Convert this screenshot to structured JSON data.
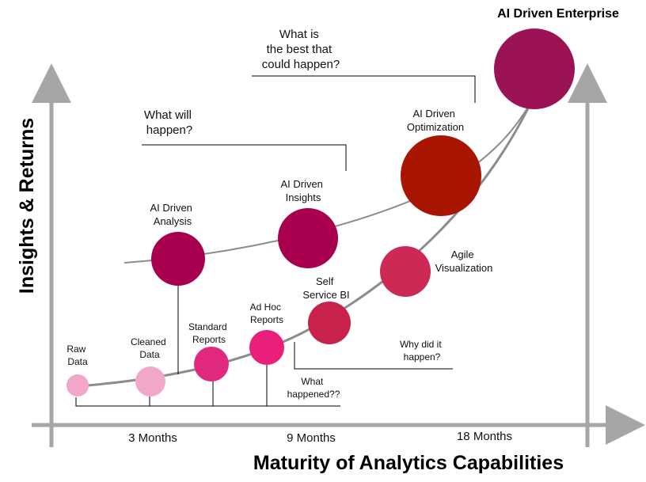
{
  "title": "AI Driven Enterprise",
  "axes": {
    "x_title": "Maturity of Analytics Capabilities",
    "y_title": "Insights & Returns",
    "x_ticks": [
      "3 Months",
      "9 Months",
      "18 Months"
    ]
  },
  "stages": [
    {
      "id": "raw-data",
      "lines": [
        "Raw",
        "Data"
      ],
      "color": "#f2a6c9"
    },
    {
      "id": "cleaned-data",
      "lines": [
        "Cleaned",
        "Data"
      ],
      "color": "#f2a6c9"
    },
    {
      "id": "standard-reports",
      "lines": [
        "Standard",
        "Reports"
      ],
      "color": "#e0287e"
    },
    {
      "id": "ad-hoc-reports",
      "lines": [
        "Ad Hoc",
        "Reports"
      ],
      "color": "#e8207a"
    },
    {
      "id": "self-service-bi",
      "lines": [
        "Self",
        "Service BI"
      ],
      "color": "#c8224a"
    },
    {
      "id": "agile-visualization",
      "lines": [
        "Agile",
        "Visualization"
      ],
      "color": "#cc2a55"
    },
    {
      "id": "ai-driven-analysis",
      "lines": [
        "AI Driven",
        "Analysis"
      ],
      "color": "#a8004e"
    },
    {
      "id": "ai-driven-insights",
      "lines": [
        "AI Driven",
        "Insights"
      ],
      "color": "#a8004e"
    },
    {
      "id": "ai-driven-optimization",
      "lines": [
        "AI Driven",
        "Optimization"
      ],
      "color": "#a81500"
    },
    {
      "id": "ai-driven-enterprise",
      "lines": [],
      "color": "#9b1255"
    }
  ],
  "questions": [
    {
      "id": "what-happened",
      "lines": [
        "What",
        "happened??"
      ]
    },
    {
      "id": "why-did-it-happen",
      "lines": [
        "Why did it",
        "happen?"
      ]
    },
    {
      "id": "what-will-happen",
      "lines": [
        "What will",
        "happen?"
      ]
    },
    {
      "id": "what-is-best",
      "lines": [
        "What is",
        "the best that",
        "could happen?"
      ]
    }
  ],
  "colors": {
    "axis": "#a6a6a6",
    "curve": "#8c8c8c"
  }
}
